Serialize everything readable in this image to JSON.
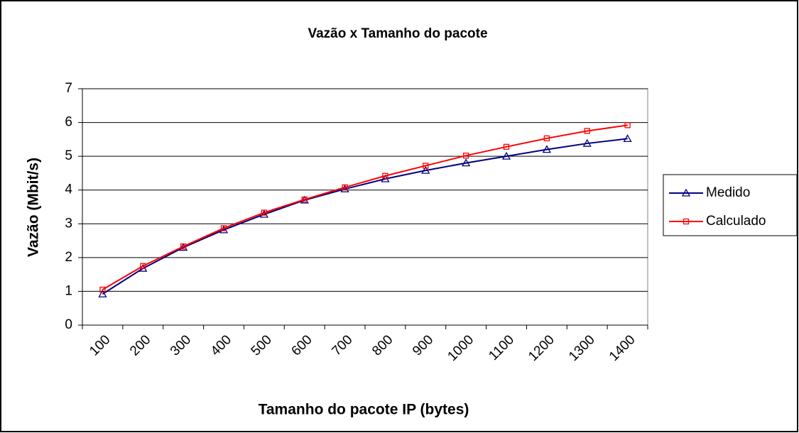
{
  "chart_data": {
    "type": "line",
    "title": "Vazão x Tamanho do pacote",
    "x_label": "Tamanho do pacote IP (bytes)",
    "y_label": "Vazão (Mbit/s)",
    "categories": [
      "100",
      "200",
      "300",
      "400",
      "500",
      "600",
      "700",
      "800",
      "900",
      "1000",
      "1100",
      "1200",
      "1300",
      "1400"
    ],
    "series": [
      {
        "name": "Medido",
        "color": "#000080",
        "marker": "triangle",
        "values": [
          0.92,
          1.68,
          2.3,
          2.82,
          3.28,
          3.7,
          4.03,
          4.33,
          4.58,
          4.8,
          5.0,
          5.2,
          5.38,
          5.52
        ]
      },
      {
        "name": "Calculado",
        "color": "#ff0000",
        "marker": "square",
        "values": [
          1.05,
          1.75,
          2.33,
          2.87,
          3.33,
          3.72,
          4.08,
          4.42,
          4.72,
          5.02,
          5.28,
          5.53,
          5.75,
          5.92
        ]
      }
    ],
    "ylim": [
      0,
      7
    ],
    "yticks": [
      0,
      1,
      2,
      3,
      4,
      5,
      6,
      7
    ],
    "grid": true,
    "legend": "right"
  }
}
